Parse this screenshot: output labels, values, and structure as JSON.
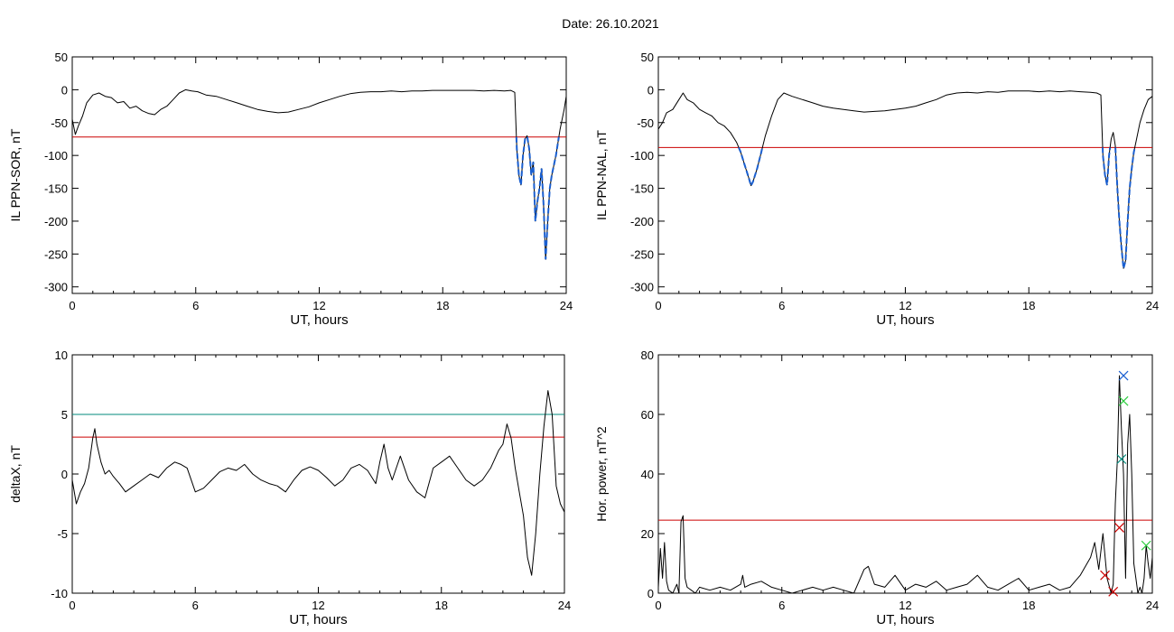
{
  "figure": {
    "title": "Date:  26.10.2021"
  },
  "chart_data": [
    {
      "type": "line",
      "title": "",
      "xlabel": "UT, hours",
      "ylabel": "IL PPN-SOR, nT",
      "xlim": [
        0,
        24
      ],
      "ylim": [
        -310,
        50
      ],
      "xticks": [
        0,
        6,
        12,
        18,
        24
      ],
      "yticks": [
        50,
        0,
        -50,
        -100,
        -150,
        -200,
        -250,
        -300
      ],
      "threshold": {
        "value": -72,
        "color": "#cc0000"
      },
      "highlight_color": "#1a5fd0",
      "highlight_below_threshold": true,
      "series": [
        {
          "color": "#000000",
          "x": [
            0,
            0.15,
            0.3,
            0.5,
            0.7,
            1.0,
            1.3,
            1.6,
            1.9,
            2.2,
            2.5,
            2.8,
            3.1,
            3.4,
            3.7,
            4.0,
            4.3,
            4.6,
            4.9,
            5.2,
            5.5,
            5.8,
            6.1,
            6.5,
            7.0,
            7.5,
            8.0,
            8.5,
            9.0,
            9.5,
            10.0,
            10.5,
            11.0,
            11.5,
            12.0,
            12.5,
            13.0,
            13.5,
            14.0,
            14.5,
            15.0,
            15.5,
            16.0,
            16.5,
            17.0,
            17.5,
            18.0,
            18.5,
            19.0,
            19.5,
            20.0,
            20.5,
            21.0,
            21.3,
            21.5,
            21.6,
            21.7,
            21.8,
            21.9,
            22.0,
            22.1,
            22.2,
            22.3,
            22.4,
            22.5,
            22.6,
            22.7,
            22.8,
            22.9,
            23.0,
            23.1,
            23.2,
            23.3,
            23.5,
            23.7,
            23.9,
            24.0
          ],
          "y": [
            -45,
            -68,
            -55,
            -40,
            -20,
            -8,
            -5,
            -10,
            -12,
            -20,
            -18,
            -28,
            -25,
            -32,
            -36,
            -38,
            -30,
            -25,
            -15,
            -5,
            0,
            -2,
            -3,
            -8,
            -10,
            -15,
            -20,
            -25,
            -30,
            -33,
            -35,
            -34,
            -30,
            -26,
            -20,
            -15,
            -10,
            -6,
            -4,
            -3,
            -3,
            -2,
            -3,
            -2,
            -2,
            -1,
            -1,
            -1,
            -1,
            -1,
            -2,
            -1,
            -2,
            -1,
            -4,
            -90,
            -130,
            -145,
            -100,
            -75,
            -70,
            -90,
            -130,
            -110,
            -200,
            -170,
            -150,
            -120,
            -175,
            -258,
            -200,
            -150,
            -130,
            -100,
            -60,
            -30,
            -10
          ]
        }
      ]
    },
    {
      "type": "line",
      "title": "",
      "xlabel": "UT, hours",
      "ylabel": "IL PPN-NAL, nT",
      "xlim": [
        0,
        24
      ],
      "ylim": [
        -310,
        50
      ],
      "xticks": [
        0,
        6,
        12,
        18,
        24
      ],
      "yticks": [
        50,
        0,
        -50,
        -100,
        -150,
        -200,
        -250,
        -300
      ],
      "threshold": {
        "value": -88,
        "color": "#cc0000"
      },
      "highlight_color": "#1a5fd0",
      "highlight_below_threshold": true,
      "series": [
        {
          "color": "#000000",
          "x": [
            0,
            0.2,
            0.4,
            0.7,
            1.0,
            1.2,
            1.4,
            1.7,
            2.0,
            2.3,
            2.6,
            2.9,
            3.2,
            3.5,
            3.8,
            4.0,
            4.2,
            4.4,
            4.5,
            4.6,
            4.8,
            5.0,
            5.2,
            5.5,
            5.8,
            6.1,
            6.5,
            7.0,
            7.5,
            8.0,
            8.5,
            9.0,
            9.5,
            10.0,
            10.5,
            11.0,
            11.5,
            12.0,
            12.5,
            13.0,
            13.5,
            14.0,
            14.5,
            15.0,
            15.5,
            16.0,
            16.5,
            17.0,
            17.5,
            18.0,
            18.5,
            19.0,
            19.5,
            20.0,
            20.5,
            21.0,
            21.3,
            21.5,
            21.6,
            21.7,
            21.8,
            21.9,
            22.0,
            22.1,
            22.2,
            22.3,
            22.4,
            22.5,
            22.6,
            22.7,
            22.8,
            22.9,
            23.0,
            23.1,
            23.2,
            23.4,
            23.6,
            23.8,
            24.0
          ],
          "y": [
            -60,
            -50,
            -35,
            -30,
            -15,
            -5,
            -15,
            -20,
            -30,
            -35,
            -40,
            -50,
            -55,
            -65,
            -80,
            -95,
            -115,
            -135,
            -146,
            -140,
            -120,
            -95,
            -70,
            -40,
            -15,
            -5,
            -10,
            -15,
            -20,
            -25,
            -28,
            -30,
            -32,
            -34,
            -33,
            -32,
            -30,
            -28,
            -25,
            -20,
            -15,
            -8,
            -5,
            -4,
            -5,
            -3,
            -4,
            -2,
            -2,
            -2,
            -3,
            -2,
            -3,
            -2,
            -3,
            -4,
            -5,
            -8,
            -100,
            -130,
            -145,
            -100,
            -75,
            -65,
            -85,
            -150,
            -200,
            -240,
            -272,
            -260,
            -200,
            -150,
            -120,
            -95,
            -80,
            -50,
            -30,
            -15,
            -10
          ]
        }
      ]
    },
    {
      "type": "line",
      "title": "",
      "xlabel": "UT, hours",
      "ylabel": "deltaX, nT",
      "xlim": [
        0,
        24
      ],
      "ylim": [
        -10,
        10
      ],
      "xticks": [
        0,
        6,
        12,
        18,
        24
      ],
      "yticks": [
        10,
        5,
        0,
        -5,
        -10
      ],
      "hlines": [
        {
          "value": 5,
          "color": "#00897b"
        },
        {
          "value": 3.1,
          "color": "#cc0000"
        }
      ],
      "series": [
        {
          "color": "#000000",
          "x": [
            0,
            0.2,
            0.4,
            0.6,
            0.8,
            1.0,
            1.1,
            1.2,
            1.4,
            1.6,
            1.8,
            2.0,
            2.3,
            2.6,
            3.0,
            3.4,
            3.8,
            4.2,
            4.6,
            5.0,
            5.3,
            5.6,
            6.0,
            6.4,
            6.8,
            7.2,
            7.6,
            8.0,
            8.4,
            8.8,
            9.2,
            9.6,
            10.0,
            10.4,
            10.8,
            11.2,
            11.6,
            12.0,
            12.4,
            12.8,
            13.2,
            13.6,
            14.0,
            14.4,
            14.8,
            15.0,
            15.2,
            15.4,
            15.6,
            15.8,
            16.0,
            16.4,
            16.8,
            17.2,
            17.6,
            18.0,
            18.4,
            18.8,
            19.2,
            19.6,
            20.0,
            20.4,
            20.8,
            21.0,
            21.2,
            21.4,
            21.6,
            21.8,
            22.0,
            22.2,
            22.4,
            22.6,
            22.8,
            23.0,
            23.2,
            23.4,
            23.6,
            23.8,
            24.0
          ],
          "y": [
            -0.5,
            -2.5,
            -1.5,
            -0.8,
            0.5,
            3.0,
            3.8,
            2.5,
            1.0,
            0.0,
            0.3,
            -0.2,
            -0.8,
            -1.5,
            -1.0,
            -0.5,
            0.0,
            -0.3,
            0.5,
            1.0,
            0.8,
            0.5,
            -1.5,
            -1.2,
            -0.5,
            0.2,
            0.5,
            0.3,
            0.8,
            0.0,
            -0.5,
            -0.8,
            -1.0,
            -1.5,
            -0.5,
            0.3,
            0.6,
            0.3,
            -0.3,
            -1.0,
            -0.5,
            0.5,
            0.8,
            0.3,
            -0.8,
            1.0,
            2.5,
            0.5,
            -0.5,
            0.5,
            1.5,
            -0.5,
            -1.5,
            -2.0,
            0.5,
            1.0,
            1.5,
            0.5,
            -0.5,
            -1.0,
            -0.5,
            0.5,
            2.0,
            2.5,
            4.2,
            3.0,
            0.5,
            -1.5,
            -3.5,
            -7.0,
            -8.5,
            -5.0,
            0.0,
            4.0,
            7.0,
            5.0,
            -1.0,
            -2.5,
            -3.2
          ]
        }
      ]
    },
    {
      "type": "line",
      "title": "",
      "xlabel": "UT, hours",
      "ylabel": "Hor. power, nT^2",
      "xlim": [
        0,
        24
      ],
      "ylim": [
        0,
        80
      ],
      "xticks": [
        0,
        6,
        12,
        18,
        24
      ],
      "yticks": [
        80,
        60,
        40,
        20,
        0
      ],
      "hlines": [
        {
          "value": 24.5,
          "color": "#cc0000"
        }
      ],
      "markers": [
        {
          "x": 22.6,
          "y": 73,
          "color": "#1a5fd0"
        },
        {
          "x": 22.6,
          "y": 64.5,
          "color": "#2ecc40"
        },
        {
          "x": 22.5,
          "y": 45,
          "color": "#00897b"
        },
        {
          "x": 22.4,
          "y": 22,
          "color": "#cc0000"
        },
        {
          "x": 21.7,
          "y": 6,
          "color": "#cc0000"
        },
        {
          "x": 22.1,
          "y": 0.5,
          "color": "#cc0000"
        },
        {
          "x": 23.7,
          "y": 16,
          "color": "#2ecc40"
        }
      ],
      "series": [
        {
          "color": "#000000",
          "x": [
            0,
            0.1,
            0.2,
            0.3,
            0.4,
            0.5,
            0.7,
            0.9,
            1.0,
            1.1,
            1.2,
            1.3,
            1.4,
            1.6,
            1.8,
            2.0,
            2.5,
            3.0,
            3.5,
            4.0,
            4.1,
            4.2,
            4.5,
            5.0,
            5.5,
            6.0,
            6.5,
            7.0,
            7.5,
            8.0,
            8.5,
            9.0,
            9.5,
            10.0,
            10.2,
            10.5,
            11.0,
            11.5,
            12.0,
            12.5,
            13.0,
            13.5,
            14.0,
            14.5,
            15.0,
            15.5,
            16.0,
            16.5,
            17.0,
            17.5,
            18.0,
            18.5,
            19.0,
            19.5,
            20.0,
            20.5,
            21.0,
            21.2,
            21.4,
            21.6,
            21.8,
            22.0,
            22.1,
            22.2,
            22.3,
            22.4,
            22.5,
            22.6,
            22.7,
            22.8,
            22.9,
            23.0,
            23.1,
            23.2,
            23.3,
            23.4,
            23.5,
            23.6,
            23.7,
            23.8,
            23.9,
            24.0
          ],
          "y": [
            2,
            15,
            5,
            17,
            4,
            1,
            0,
            3,
            0,
            24,
            26,
            5,
            2,
            1,
            0,
            2,
            1,
            2,
            1,
            3,
            6,
            2,
            3,
            4,
            2,
            1,
            0,
            1,
            2,
            1,
            2,
            1,
            0,
            8,
            9,
            3,
            2,
            6,
            1,
            3,
            2,
            4,
            1,
            2,
            3,
            6,
            2,
            1,
            3,
            5,
            1,
            2,
            3,
            1,
            2,
            6,
            12,
            17,
            8,
            20,
            5,
            0,
            3,
            30,
            45,
            73,
            55,
            40,
            5,
            50,
            60,
            40,
            10,
            5,
            0,
            2,
            0,
            5,
            16,
            10,
            5,
            12
          ]
        }
      ]
    }
  ]
}
